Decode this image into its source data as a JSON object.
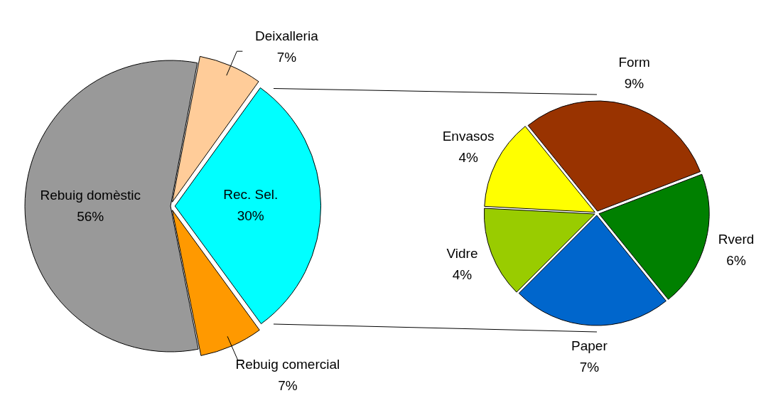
{
  "chart_data": [
    {
      "type": "pie",
      "categories": [
        "Rebuig domèstic",
        "Deixalleria",
        "Rec. Sel.",
        "Rebuig comercial"
      ],
      "values": [
        56,
        7,
        30,
        7
      ],
      "colors": [
        "#999999",
        "#ffcc99",
        "#00ffff",
        "#ff9900"
      ],
      "value_labels": [
        "56%",
        "7%",
        "30%",
        "7%"
      ],
      "legend": false
    },
    {
      "type": "pie",
      "categories": [
        "Form",
        "Rverd",
        "Paper",
        "Vidre",
        "Envasos"
      ],
      "values": [
        9,
        6,
        7,
        4,
        4
      ],
      "colors": [
        "#993300",
        "#008000",
        "#0066cc",
        "#99cc00",
        "#ffff00"
      ],
      "value_labels": [
        "9%",
        "6%",
        "7%",
        "4%",
        "4%"
      ],
      "legend": false
    }
  ]
}
